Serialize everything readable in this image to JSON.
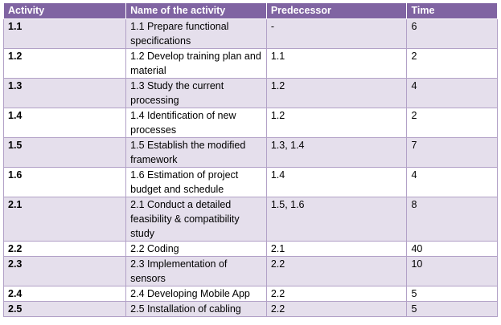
{
  "headers": {
    "activity": "Activity",
    "name": "Name of the activity",
    "predecessor": "Predecessor",
    "time": "Time"
  },
  "rows": [
    {
      "activity": "1.1",
      "name": "1.1 Prepare functional specifications",
      "predecessor": "-",
      "time": "6"
    },
    {
      "activity": "1.2",
      "name": "1.2 Develop training plan and material",
      "predecessor": "1.1",
      "time": "2"
    },
    {
      "activity": "1.3",
      "name": "1.3 Study the current processing",
      "predecessor": "1.2",
      "time": "4"
    },
    {
      "activity": "1.4",
      "name": "1.4 Identification of new processes",
      "predecessor": "1.2",
      "time": "2"
    },
    {
      "activity": "1.5",
      "name": "1.5 Establish the modified framework",
      "predecessor": "1.3, 1.4",
      "time": "7"
    },
    {
      "activity": "1.6",
      "name": "1.6 Estimation of project budget and schedule",
      "predecessor": "1.4",
      "time": "4"
    },
    {
      "activity": "2.1",
      "name": "2.1 Conduct a detailed feasibility & compatibility study",
      "predecessor": "1.5, 1.6",
      "time": "8"
    },
    {
      "activity": "2.2",
      "name": "2.2 Coding",
      "predecessor": "2.1",
      "time": "40"
    },
    {
      "activity": "2.3",
      "name": "2.3 Implementation of sensors",
      "predecessor": "2.2",
      "time": "10"
    },
    {
      "activity": "2.4",
      "name": "2.4 Developing Mobile App",
      "predecessor": "2.2",
      "time": "5"
    },
    {
      "activity": "2.5",
      "name": "2.5 Installation of cabling",
      "predecessor": "2.2",
      "time": "5"
    }
  ]
}
